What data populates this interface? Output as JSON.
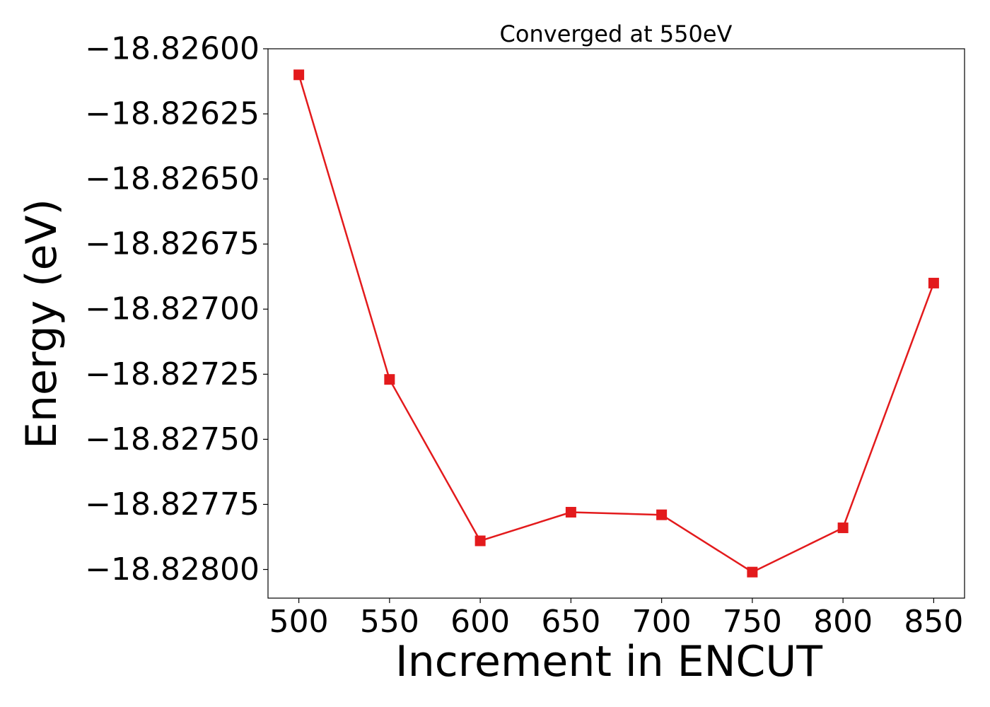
{
  "chart_data": {
    "type": "line",
    "title": "Converged at 550eV",
    "xlabel": "Increment in ENCUT",
    "ylabel": "Energy (eV)",
    "x": [
      500,
      550,
      600,
      650,
      700,
      750,
      800,
      850
    ],
    "series": [
      {
        "values": [
          -18.8261,
          -18.82727,
          -18.82789,
          -18.82778,
          -18.82779,
          -18.82801,
          -18.82784,
          -18.8269
        ],
        "color": "#e31a1c",
        "marker": "square"
      }
    ],
    "xlim": [
      483,
      867
    ],
    "ylim": [
      -18.82811,
      -18.826
    ],
    "xticks": [
      500,
      550,
      600,
      650,
      700,
      750,
      800,
      850
    ],
    "xtick_labels": [
      "500",
      "550",
      "600",
      "650",
      "700",
      "750",
      "800",
      "850"
    ],
    "yticks": [
      -18.826,
      -18.82625,
      -18.8265,
      -18.82675,
      -18.827,
      -18.82725,
      -18.8275,
      -18.82775,
      -18.828
    ],
    "ytick_labels": [
      "−18.82600",
      "−18.82625",
      "−18.82650",
      "−18.82675",
      "−18.82700",
      "−18.82725",
      "−18.82750",
      "−18.82775",
      "−18.82800"
    ],
    "grid": false,
    "legend": "none"
  }
}
